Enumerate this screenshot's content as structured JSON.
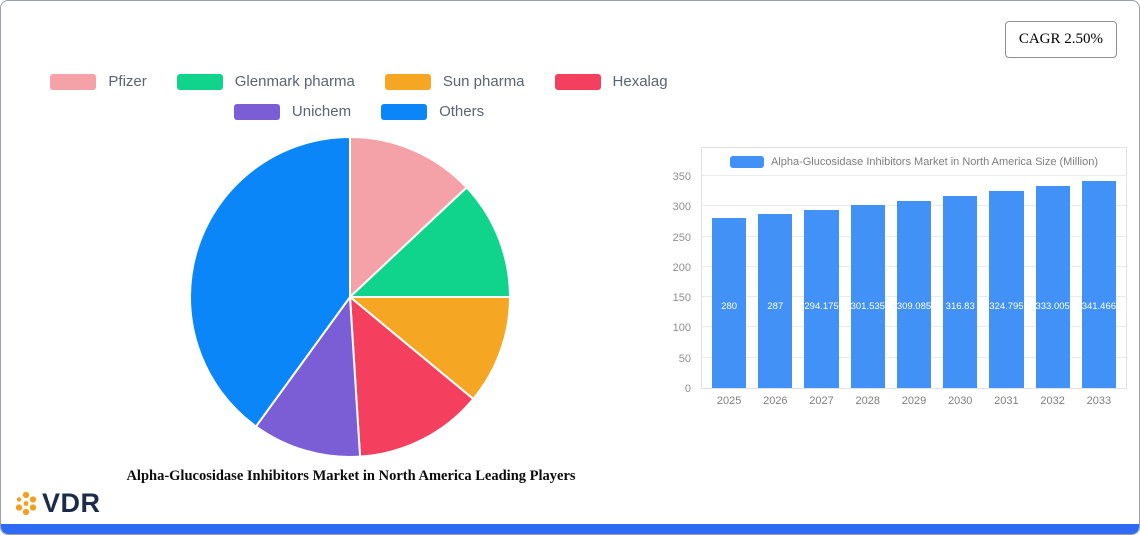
{
  "cagr_badge": "CAGR 2.50%",
  "logo_text": "VDR",
  "chart_data": [
    {
      "type": "pie",
      "title": "Alpha-Glucosidase Inhibitors Market in North America Leading Players",
      "labels": [
        "Pfizer",
        "Glenmark pharma",
        "Sun pharma",
        "Hexalag",
        "Unichem",
        "Others"
      ],
      "values": [
        13,
        12,
        11,
        13,
        11,
        40
      ],
      "colors": [
        "#f5a1a8",
        "#10d38c",
        "#f5a623",
        "#f43f5e",
        "#7b5ed6",
        "#0b86f8"
      ],
      "legend_position": "top",
      "legend_rows": [
        4,
        2
      ]
    },
    {
      "type": "bar",
      "legend": "Alpha-Glucosidase Inhibitors Market in North America Size (Million)",
      "bar_color": "#4191f7",
      "categories": [
        "2025",
        "2026",
        "2027",
        "2028",
        "2029",
        "2030",
        "2031",
        "2032",
        "2033"
      ],
      "values": [
        280,
        287,
        294.175,
        301.535,
        309.085,
        316.83,
        324.795,
        333.005,
        341.466
      ],
      "value_labels": [
        "280",
        "287",
        "294.175",
        "301.535",
        "309.085",
        "316.83",
        "324.795",
        "333.005",
        "341.466"
      ],
      "y_ticks": [
        0,
        50,
        100,
        150,
        200,
        250,
        300,
        350
      ],
      "ylim": [
        0,
        350
      ],
      "grid": true,
      "xlabel": "",
      "ylabel": ""
    }
  ],
  "colors": {
    "bottom_bar": "#2e6bf2",
    "logo_icon": "#f59e1b",
    "logo_text": "#1c2b4a"
  }
}
